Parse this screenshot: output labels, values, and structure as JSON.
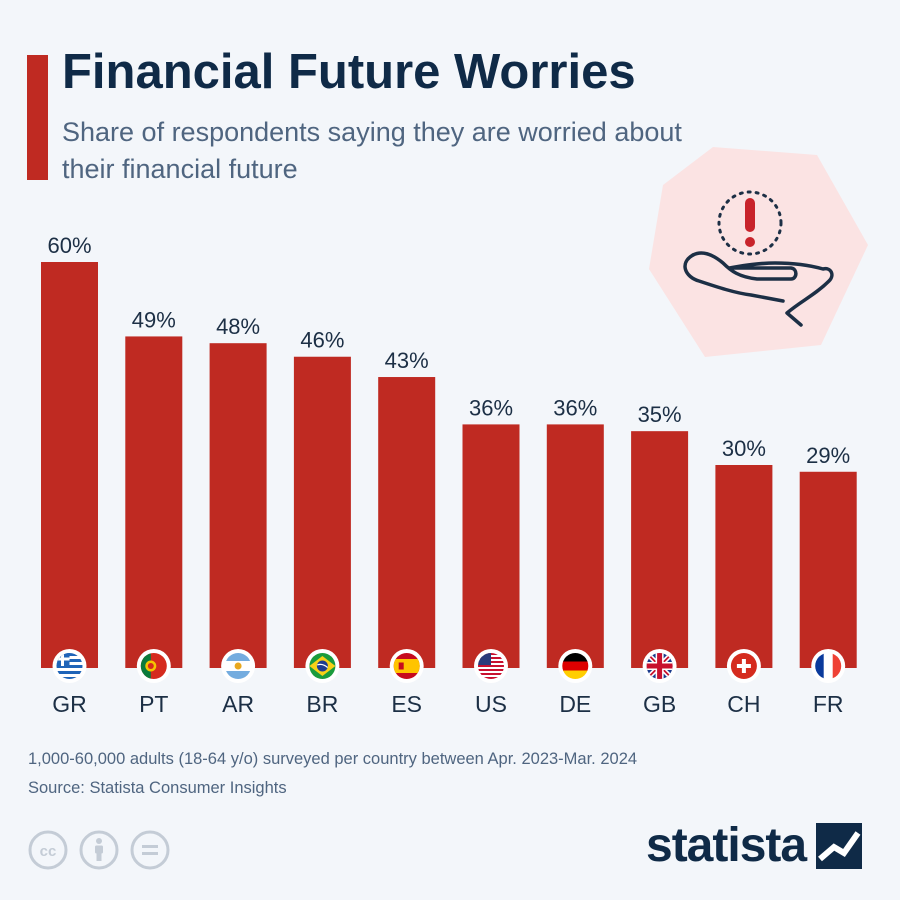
{
  "header": {
    "title": "Financial Future Worries",
    "subtitle": "Share of respondents saying they are worried about their financial future"
  },
  "chart_data": {
    "type": "bar",
    "categories": [
      "GR",
      "PT",
      "AR",
      "BR",
      "ES",
      "US",
      "DE",
      "GB",
      "CH",
      "FR"
    ],
    "values": [
      60,
      49,
      48,
      46,
      43,
      36,
      36,
      35,
      30,
      29
    ],
    "value_labels": [
      "60%",
      "49%",
      "48%",
      "46%",
      "43%",
      "36%",
      "36%",
      "35%",
      "30%",
      "29%"
    ],
    "flag_icons": [
      "greece-flag-icon",
      "portugal-flag-icon",
      "argentina-flag-icon",
      "brazil-flag-icon",
      "spain-flag-icon",
      "usa-flag-icon",
      "germany-flag-icon",
      "uk-flag-icon",
      "switzerland-flag-icon",
      "france-flag-icon"
    ],
    "title": "Financial Future Worries",
    "xlabel": "",
    "ylabel": "",
    "ylim": [
      0,
      60
    ],
    "grid": false,
    "bar_color": "#bf2a22"
  },
  "footer": {
    "note": "1,000-60,000 adults (18-64 y/o) surveyed per country between Apr. 2023-Mar. 2024",
    "source": "Source: Statista Consumer Insights"
  },
  "brand": {
    "name": "statista"
  },
  "icons": {
    "illustration": "hand-warning-icon",
    "license": [
      "cc-icon",
      "attribution-icon",
      "no-derivatives-icon"
    ]
  },
  "colors": {
    "accent": "#bf2a22",
    "title": "#0f2a47",
    "subtitle": "#4f6580",
    "background": "#f3f6fa",
    "illustration_bg": "#fbe3e3"
  }
}
